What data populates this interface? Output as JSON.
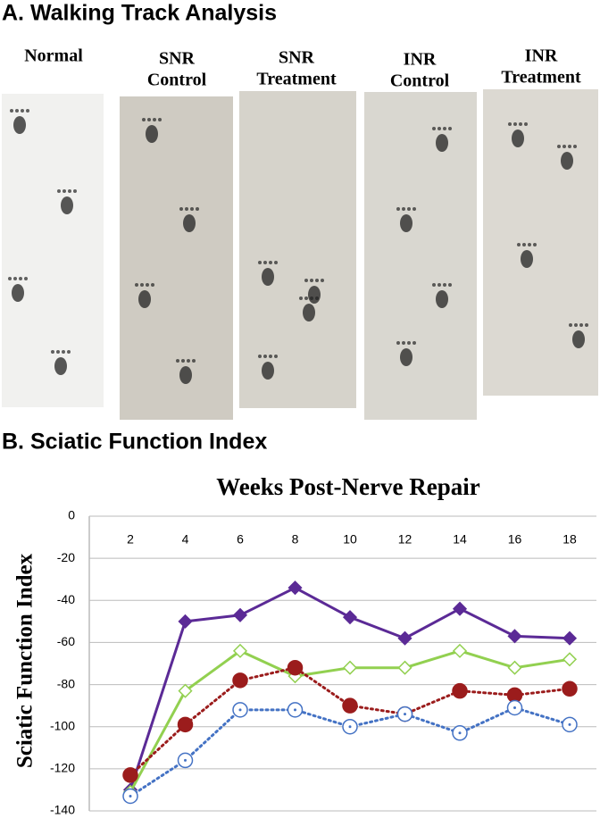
{
  "panel_a": {
    "title": "A. Walking Track Analysis",
    "columns": [
      {
        "lines": [
          "Normal"
        ]
      },
      {
        "lines": [
          "SNR",
          "Control"
        ]
      },
      {
        "lines": [
          "SNR",
          "Treatment"
        ]
      },
      {
        "lines": [
          "INR",
          "Control"
        ]
      },
      {
        "lines": [
          "INR",
          "Treatment"
        ]
      }
    ]
  },
  "panel_b": {
    "title": "B. Sciatic Function Index"
  },
  "chart_data": {
    "type": "line",
    "title": "Weeks Post-Nerve Repair",
    "y_label": "Sciatic Function Index",
    "categories": [
      2,
      4,
      6,
      8,
      10,
      12,
      14,
      16,
      18
    ],
    "ylim": [
      -140,
      0
    ],
    "yticks": [
      0,
      -20,
      -40,
      -60,
      -80,
      -100,
      -120,
      -140
    ],
    "grid": true,
    "series": [
      {
        "color": "#5b2a96",
        "marker": "diamond",
        "filled": true,
        "dotted": false,
        "values": [
          -130,
          -50,
          -47,
          -34,
          -48,
          -58,
          -44,
          -57,
          -58
        ]
      },
      {
        "color": "#92d050",
        "marker": "diamond",
        "filled": false,
        "dotted": false,
        "values": [
          -131,
          -83,
          -64,
          -76,
          -72,
          -72,
          -64,
          -72,
          -68
        ]
      },
      {
        "color": "#9b1c1c",
        "marker": "circle",
        "filled": true,
        "dotted": true,
        "values": [
          -123,
          -99,
          -78,
          -72,
          -90,
          -94,
          -83,
          -85,
          -82
        ]
      },
      {
        "color": "#4472c4",
        "marker": "circle",
        "filled": false,
        "dotted": true,
        "values": [
          -133,
          -116,
          -92,
          -92,
          -100,
          -94,
          -103,
          -91,
          -99
        ]
      }
    ]
  }
}
